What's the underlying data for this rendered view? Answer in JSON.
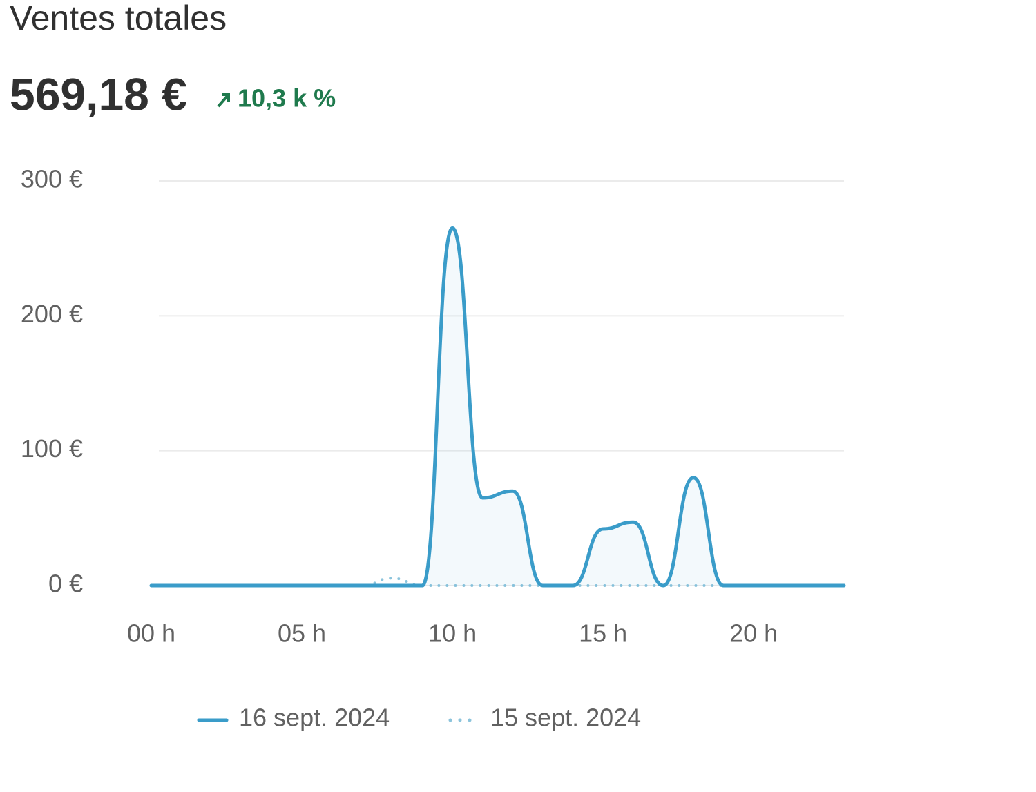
{
  "header": {
    "title": "Ventes totales",
    "total": "569,18 €",
    "change": "10,3 k %"
  },
  "chart_data": {
    "type": "line",
    "x": [
      0,
      1,
      2,
      3,
      4,
      5,
      6,
      7,
      8,
      9,
      10,
      11,
      12,
      13,
      14,
      15,
      16,
      17,
      18,
      19,
      20,
      21,
      22,
      23
    ],
    "series": [
      {
        "name": "16 sept. 2024",
        "color": "#3a9cc9",
        "style": "solid",
        "values": [
          0,
          0,
          0,
          0,
          0,
          0,
          0,
          0,
          0,
          0,
          265,
          65,
          70,
          0,
          0,
          42,
          47,
          0,
          80,
          0,
          0,
          0,
          0,
          0
        ]
      },
      {
        "name": "15 sept. 2024",
        "color": "#8cc4dc",
        "style": "dotted",
        "values": [
          0,
          0,
          0,
          0,
          0,
          0,
          0,
          0,
          5.5,
          0,
          0,
          0,
          0,
          0,
          0,
          0,
          0,
          0,
          0,
          0,
          0,
          0,
          0,
          0
        ]
      }
    ],
    "xlim": [
      0,
      23
    ],
    "xticks": [
      {
        "value": 0,
        "label": "00 h"
      },
      {
        "value": 5,
        "label": "05 h"
      },
      {
        "value": 10,
        "label": "10 h"
      },
      {
        "value": 15,
        "label": "15 h"
      },
      {
        "value": 20,
        "label": "20 h"
      }
    ],
    "ylim": [
      0,
      300
    ],
    "yticks": [
      {
        "value": 0,
        "label": "0 €"
      },
      {
        "value": 100,
        "label": "100 €"
      },
      {
        "value": 200,
        "label": "200 €"
      },
      {
        "value": 300,
        "label": "300 €"
      }
    ],
    "grid": true
  }
}
